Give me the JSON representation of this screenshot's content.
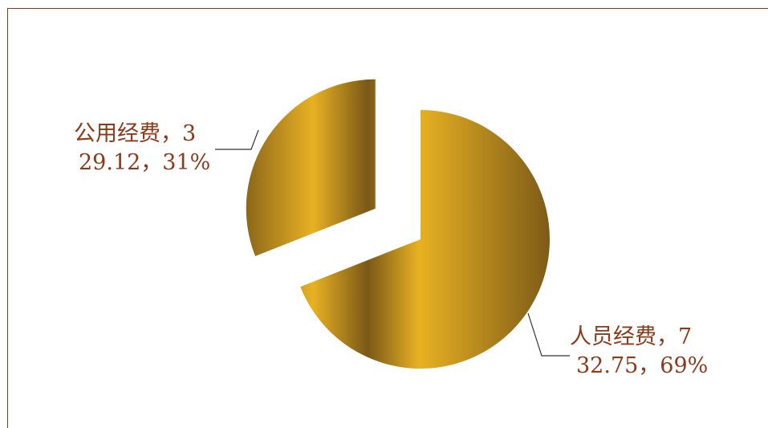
{
  "chart_data": {
    "type": "pie",
    "slices": [
      {
        "label": "人员经费",
        "value": 732.75,
        "percent": "69%",
        "value_line1": "7",
        "value_line2": "32.75"
      },
      {
        "label": "公用经费",
        "value": 329.12,
        "percent": "31%",
        "value_line1": "3",
        "value_line2": "29.12"
      }
    ],
    "exploded": true,
    "legend": "none",
    "colors": {
      "gold_light": "#e8b123",
      "gold_dark": "#7a5817",
      "text": "#8b3a1a"
    }
  },
  "labels": [
    {
      "line1": "人员经费，7",
      "line2": "32.75，69%"
    },
    {
      "line1": "公用经费，3",
      "line2": "29.12，31%"
    }
  ]
}
